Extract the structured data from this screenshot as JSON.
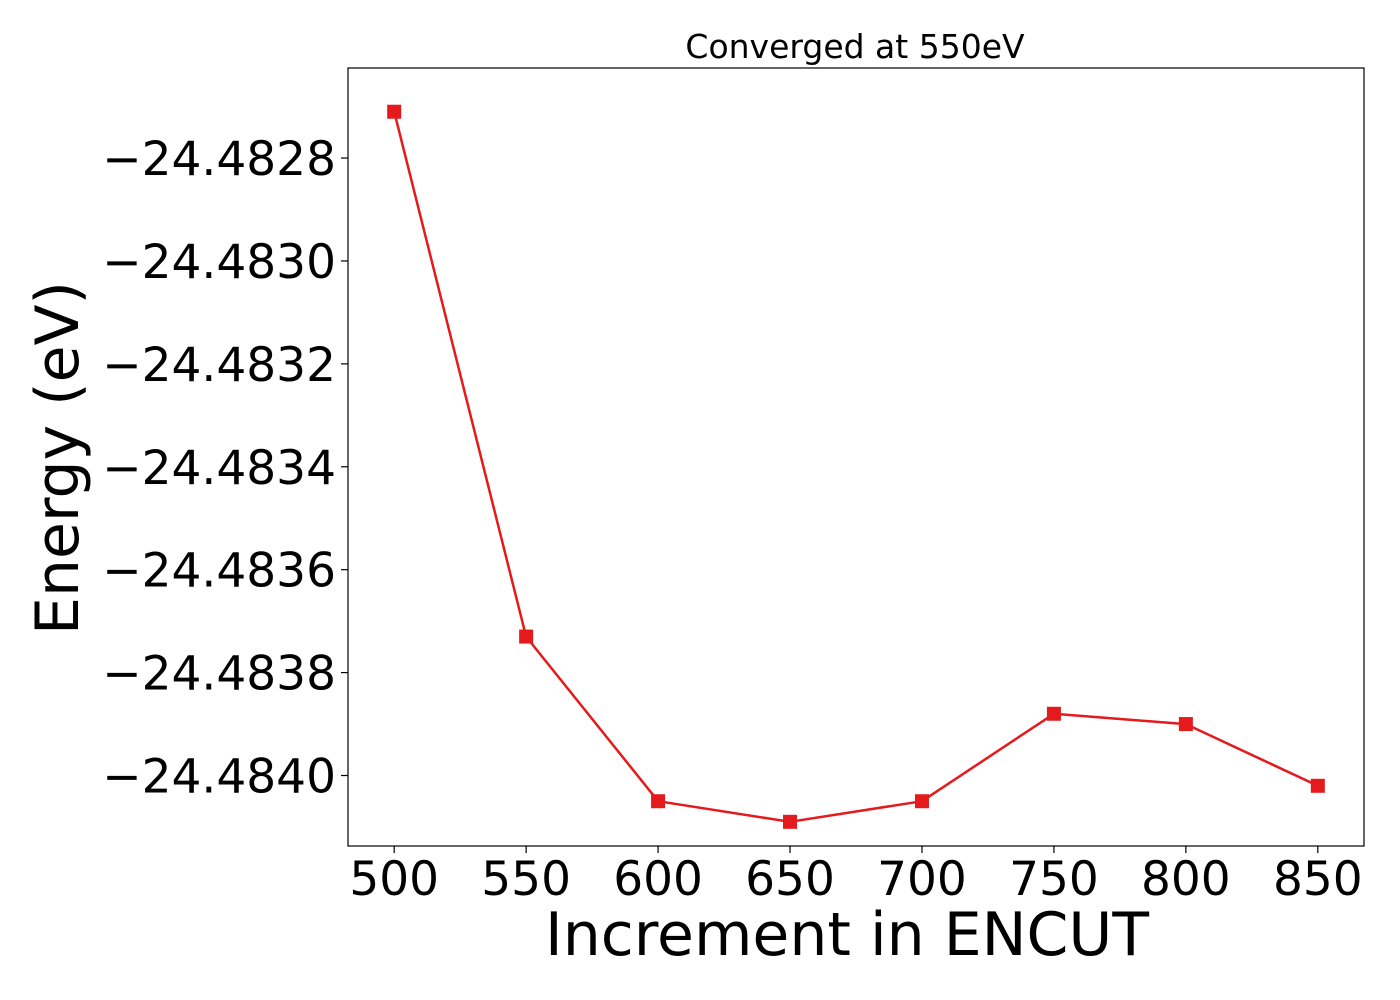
{
  "chart_data": {
    "type": "line",
    "title": "Converged at 550eV",
    "xlabel": "Increment in ENCUT",
    "ylabel": "Energy (eV)",
    "x": [
      500,
      550,
      600,
      650,
      700,
      750,
      800,
      850
    ],
    "series": [
      {
        "values": [
          -24.48271,
          -24.48373,
          -24.48405,
          -24.48409,
          -24.48405,
          -24.48388,
          -24.4839,
          -24.48402
        ],
        "color": "#e41a1c",
        "marker": "square"
      }
    ],
    "xticks": [
      500,
      550,
      600,
      650,
      700,
      750,
      800,
      850
    ],
    "xtick_labels": [
      "500",
      "550",
      "600",
      "650",
      "700",
      "750",
      "800",
      "850"
    ],
    "yticks": [
      -24.4828,
      -24.483,
      -24.4832,
      -24.4834,
      -24.4836,
      -24.4838,
      -24.484
    ],
    "ytick_labels": [
      "−24.4828",
      "−24.4830",
      "−24.4832",
      "−24.4834",
      "−24.4836",
      "−24.4838",
      "−24.4840"
    ],
    "xlim": [
      482.5,
      867.5
    ],
    "ylim": [
      -24.484137,
      -24.482625
    ],
    "grid": false,
    "legend": false
  }
}
